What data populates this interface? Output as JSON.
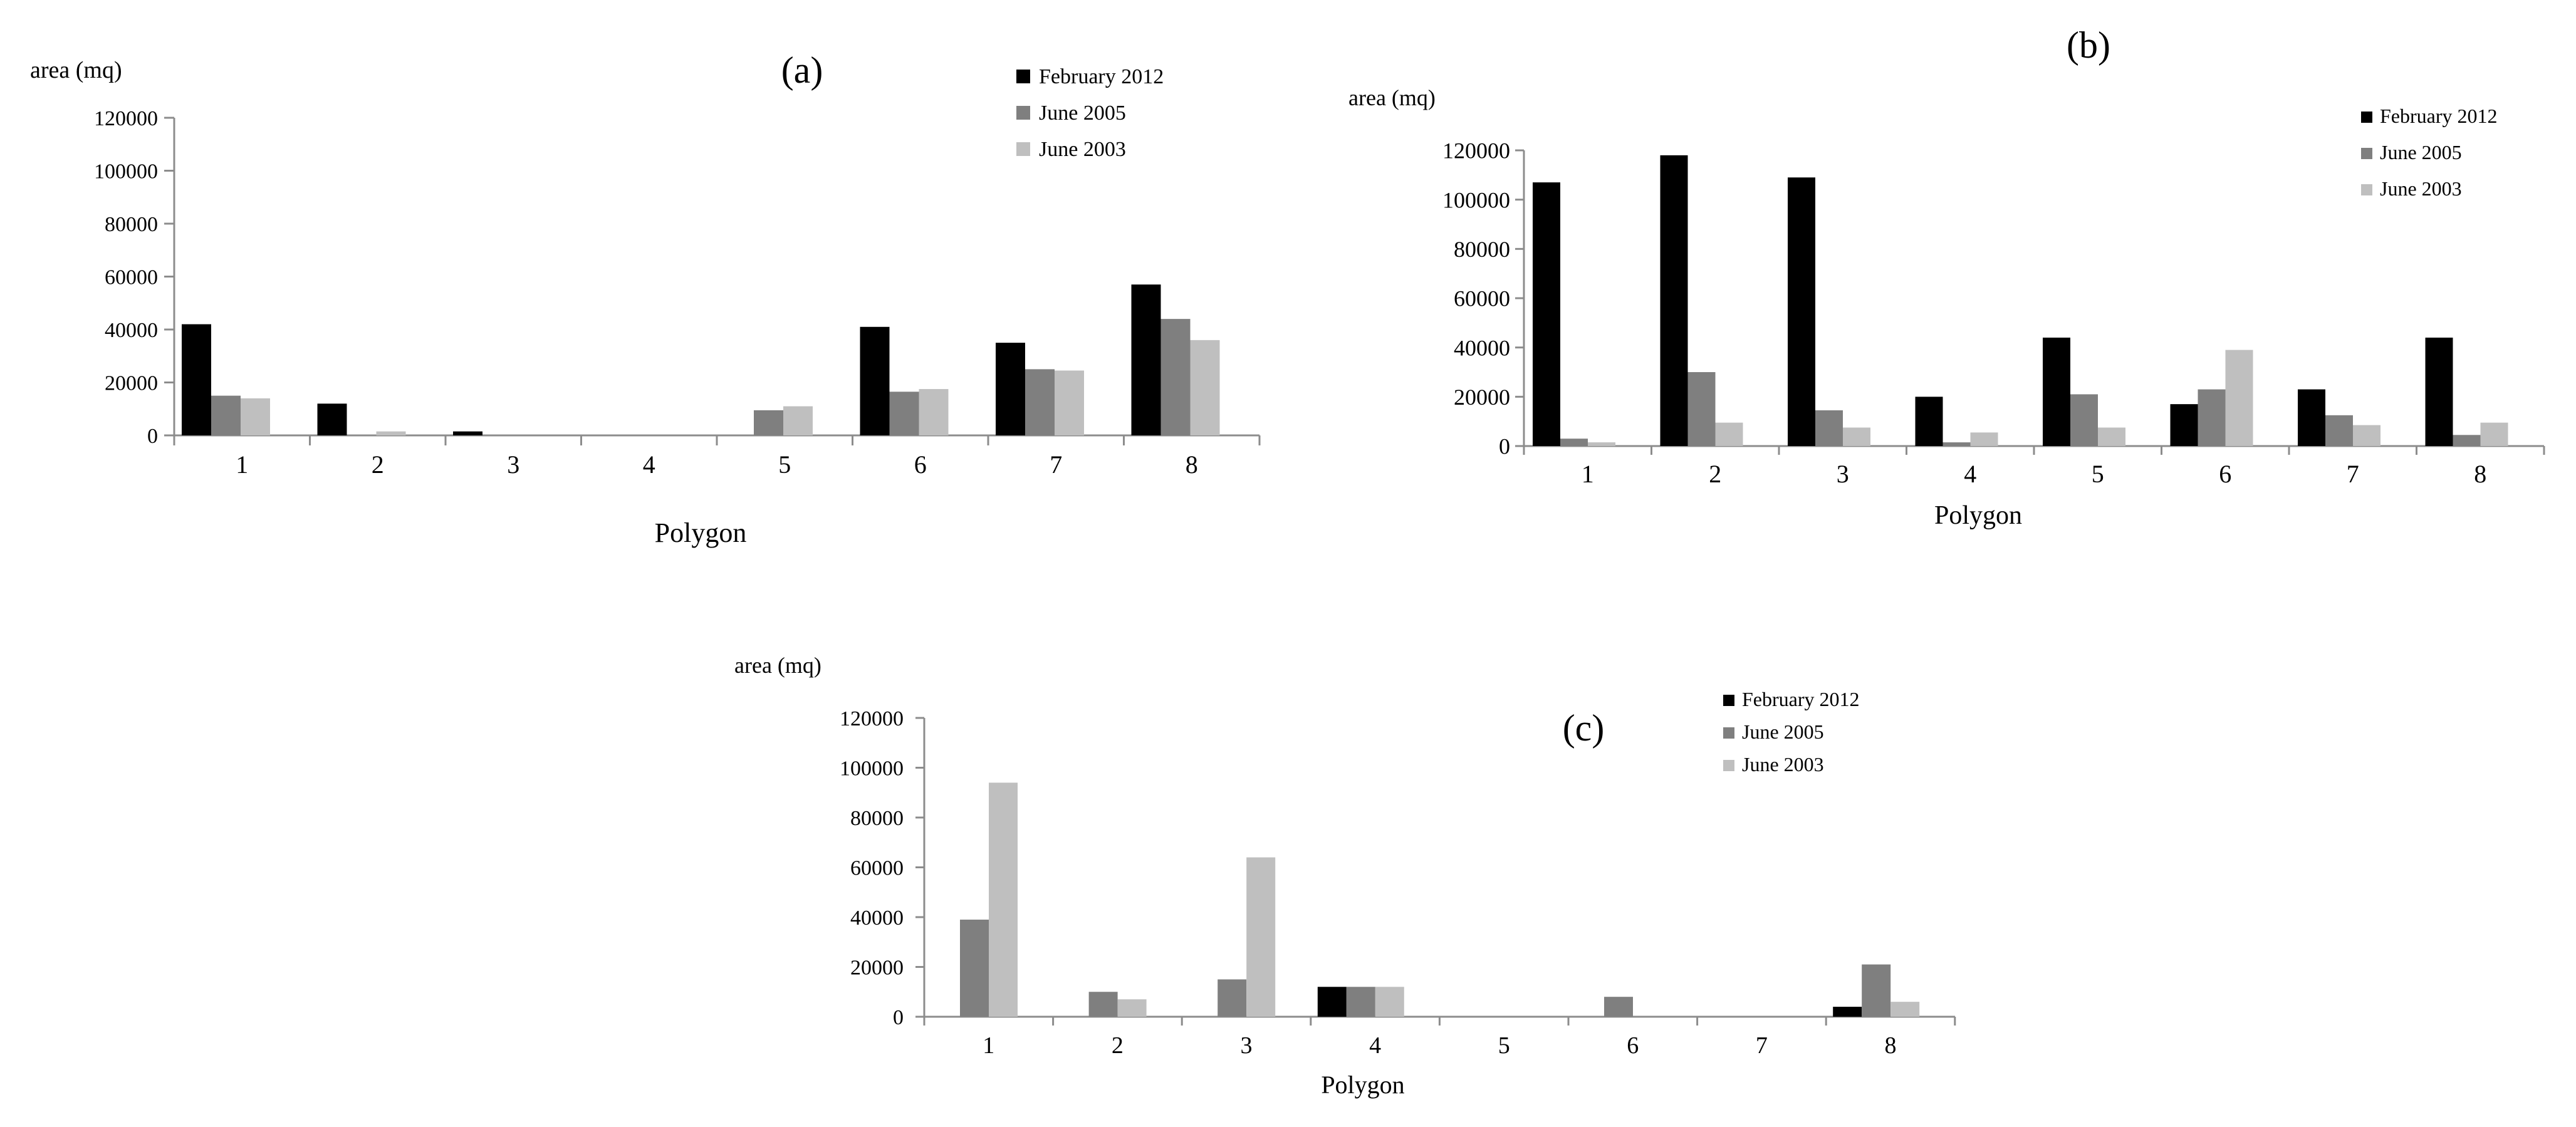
{
  "chart_data": [
    {
      "id": "a",
      "type": "bar",
      "panel_label": "(a)",
      "ylabel": "area (mq)",
      "xlabel": "Polygon",
      "ylim": [
        0,
        120000
      ],
      "yticks": [
        0,
        20000,
        40000,
        60000,
        80000,
        100000,
        120000
      ],
      "grid": false,
      "legend_position": "top-right",
      "categories": [
        "1",
        "2",
        "3",
        "4",
        "5",
        "6",
        "7",
        "8"
      ],
      "series": [
        {
          "name": "February 2012",
          "color": "#000000",
          "values": [
            42000,
            12000,
            1500,
            0,
            0,
            41000,
            35000,
            57000
          ]
        },
        {
          "name": "June 2005",
          "color": "#7f7f7f",
          "values": [
            15000,
            0,
            0,
            0,
            9500,
            16500,
            25000,
            44000
          ]
        },
        {
          "name": "June 2003",
          "color": "#bfbfbf",
          "values": [
            14000,
            1500,
            0,
            0,
            11000,
            17500,
            24500,
            36000
          ]
        }
      ]
    },
    {
      "id": "b",
      "type": "bar",
      "panel_label": "(b)",
      "ylabel": "area (mq)",
      "xlabel": "Polygon",
      "ylim": [
        0,
        120000
      ],
      "yticks": [
        0,
        20000,
        40000,
        60000,
        80000,
        100000,
        120000
      ],
      "grid": false,
      "legend_position": "top-right",
      "categories": [
        "1",
        "2",
        "3",
        "4",
        "5",
        "6",
        "7",
        "8"
      ],
      "series": [
        {
          "name": "February 2012",
          "color": "#000000",
          "values": [
            107000,
            118000,
            109000,
            20000,
            44000,
            17000,
            23000,
            44000
          ]
        },
        {
          "name": "June 2005",
          "color": "#7f7f7f",
          "values": [
            3000,
            30000,
            14500,
            1500,
            21000,
            23000,
            12500,
            4500
          ]
        },
        {
          "name": "June 2003",
          "color": "#bfbfbf",
          "values": [
            1500,
            9500,
            7500,
            5500,
            7500,
            39000,
            8500,
            9500
          ]
        }
      ]
    },
    {
      "id": "c",
      "type": "bar",
      "panel_label": "(c)",
      "ylabel": "area (mq)",
      "xlabel": "Polygon",
      "ylim": [
        0,
        120000
      ],
      "yticks": [
        0,
        20000,
        40000,
        60000,
        80000,
        100000,
        120000
      ],
      "grid": false,
      "legend_position": "top-right",
      "categories": [
        "1",
        "2",
        "3",
        "4",
        "5",
        "6",
        "7",
        "8"
      ],
      "series": [
        {
          "name": "February 2012",
          "color": "#000000",
          "values": [
            0,
            0,
            0,
            12000,
            0,
            0,
            0,
            4000
          ]
        },
        {
          "name": "June 2005",
          "color": "#7f7f7f",
          "values": [
            39000,
            10000,
            15000,
            12000,
            0,
            8000,
            0,
            21000
          ]
        },
        {
          "name": "June 2003",
          "color": "#bfbfbf",
          "values": [
            94000,
            7000,
            64000,
            12000,
            0,
            0,
            0,
            6000
          ]
        }
      ]
    }
  ]
}
